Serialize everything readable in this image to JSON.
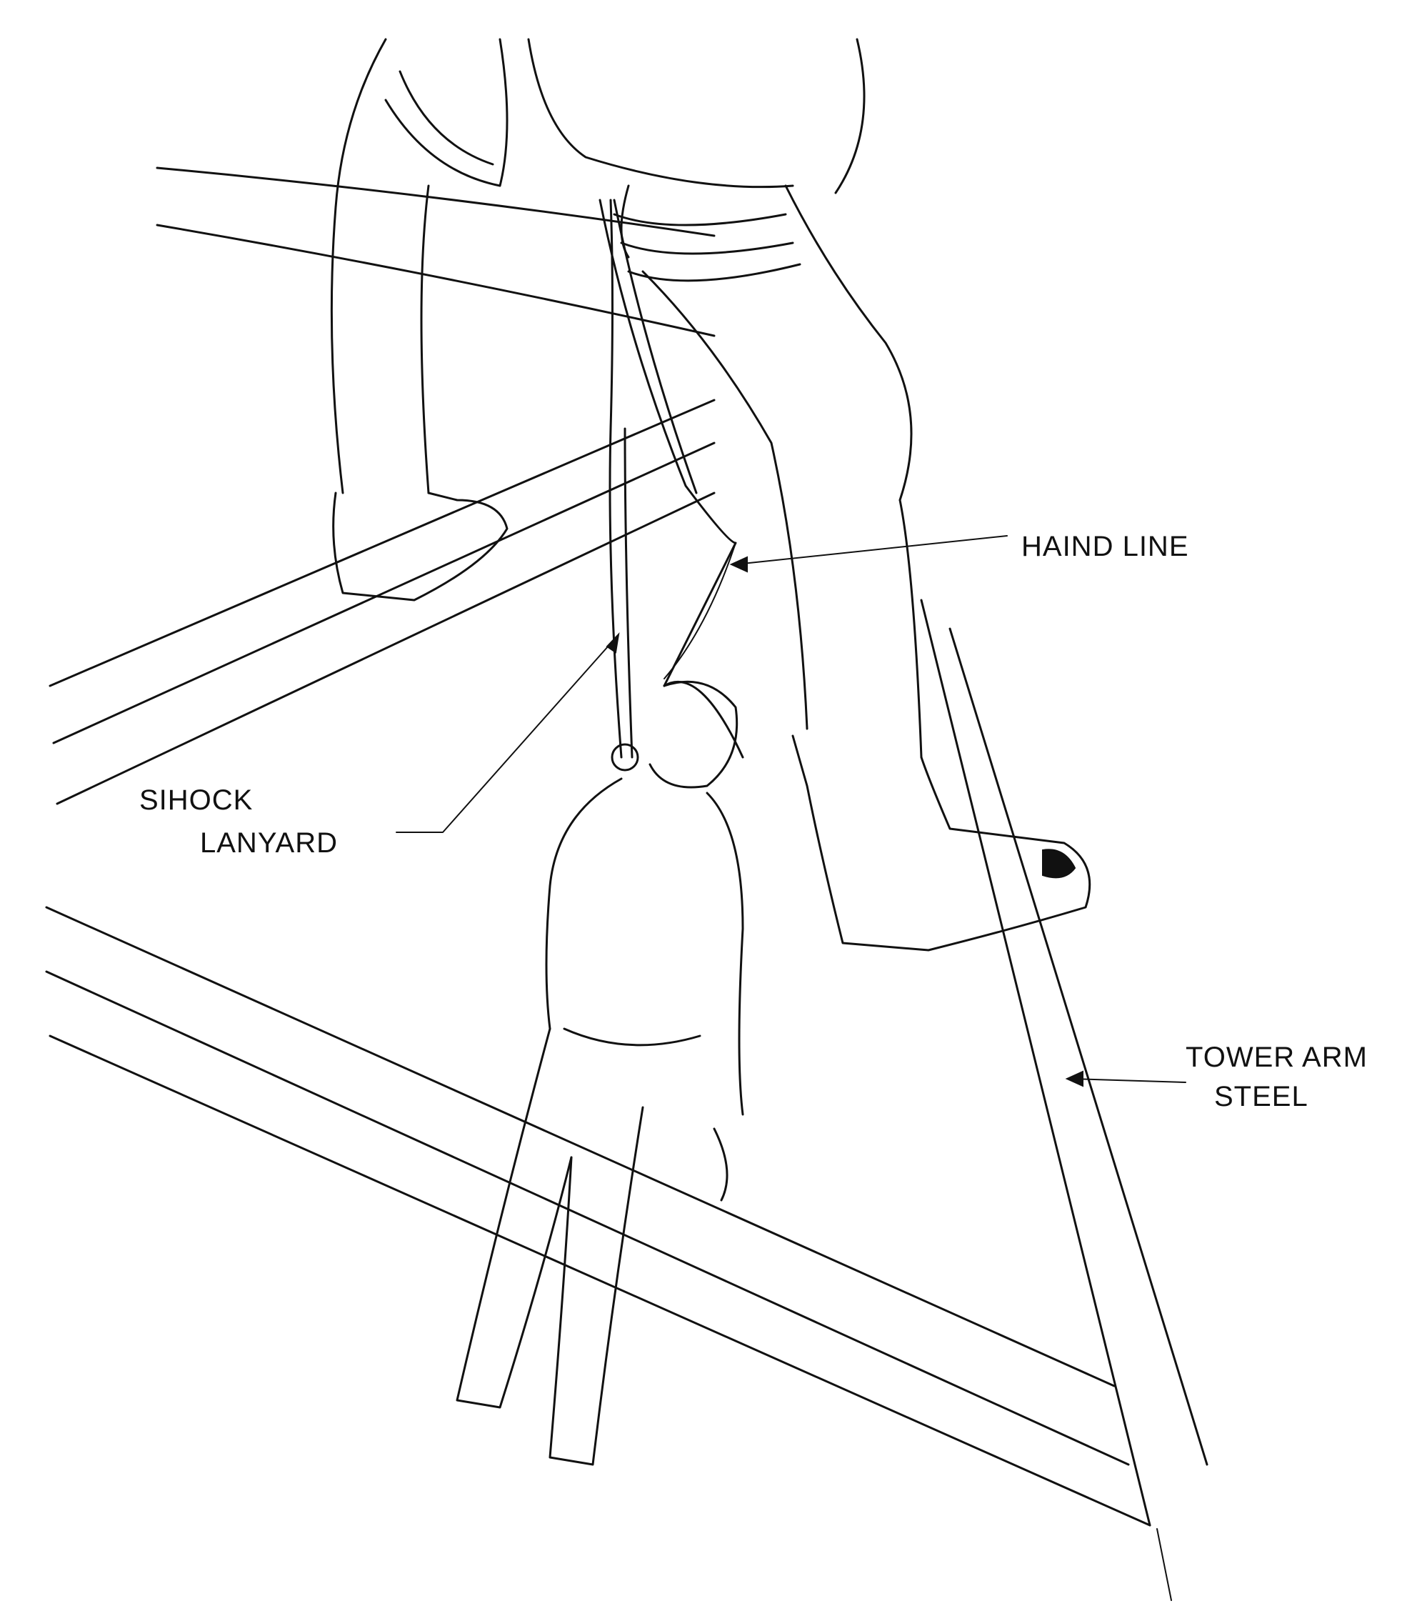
{
  "labels": {
    "hand_line": "HAIND LINE",
    "shock_lanyard_line1": "SIHOCK",
    "shock_lanyard_line2": "LANYARD",
    "tower_arm_line1": "TOWER ARM",
    "tower_arm_line2": "STEEL"
  },
  "colors": {
    "ink": "#111111",
    "paper": "#ffffff"
  }
}
